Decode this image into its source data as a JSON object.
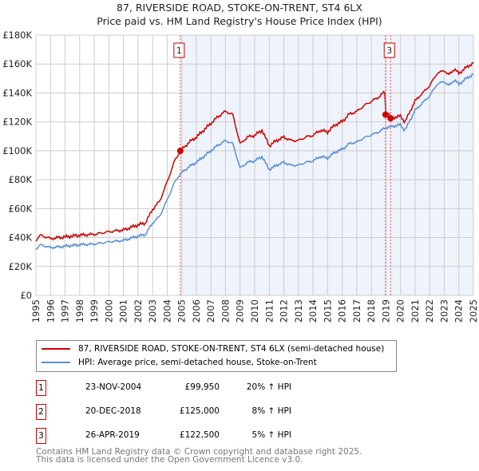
{
  "chart_data": {
    "type": "line",
    "title": "87, RIVERSIDE ROAD, STOKE-ON-TRENT, ST4 6LX",
    "subtitle": "Price paid vs. HM Land Registry's House Price Index (HPI)",
    "xlim": [
      1995,
      2025
    ],
    "ylim": [
      0,
      180000
    ],
    "yticks": [
      {
        "v": 0,
        "l": "£0"
      },
      {
        "v": 20000,
        "l": "£20K"
      },
      {
        "v": 40000,
        "l": "£40K"
      },
      {
        "v": 60000,
        "l": "£60K"
      },
      {
        "v": 80000,
        "l": "£80K"
      },
      {
        "v": 100000,
        "l": "£100K"
      },
      {
        "v": 120000,
        "l": "£120K"
      },
      {
        "v": 140000,
        "l": "£140K"
      },
      {
        "v": 160000,
        "l": "£160K"
      },
      {
        "v": 180000,
        "l": "£180K"
      }
    ],
    "xticks": [
      "1995",
      "1996",
      "1997",
      "1998",
      "1999",
      "2000",
      "2001",
      "2002",
      "2003",
      "2004",
      "2005",
      "2006",
      "2007",
      "2008",
      "2009",
      "2010",
      "2011",
      "2012",
      "2013",
      "2014",
      "2015",
      "2016",
      "2017",
      "2018",
      "2019",
      "2020",
      "2021",
      "2022",
      "2023",
      "2024",
      "2025"
    ],
    "hpi_series": {
      "name": "HPI: Average price, semi-detached house, Stoke-on-Trent",
      "color": "#5b8fd4",
      "x": [
        1995,
        1995.3,
        1996,
        1997,
        1998,
        1999,
        2000,
        2001,
        2002,
        2002.5,
        2003,
        2003.5,
        2004,
        2004.5,
        2004.9,
        2005.5,
        2006,
        2006.5,
        2007,
        2007.5,
        2008,
        2008.5,
        2009,
        2009.5,
        2010,
        2010.5,
        2011,
        2011.5,
        2012,
        2012.5,
        2013,
        2013.5,
        2014,
        2014.5,
        2015,
        2015.5,
        2016,
        2016.5,
        2017,
        2017.5,
        2018,
        2018.5,
        2018.97,
        2019.3,
        2019.5,
        2020,
        2020.3,
        2020.7,
        2021,
        2021.5,
        2022,
        2022.5,
        2023,
        2023.3,
        2023.7,
        2024,
        2024.5,
        2025
      ],
      "y": [
        32000,
        35000,
        33000,
        34000,
        35000,
        35500,
        37000,
        38000,
        41000,
        42000,
        50000,
        55000,
        66000,
        78000,
        84000,
        89000,
        92000,
        96000,
        100000,
        104000,
        107000,
        105000,
        88000,
        92000,
        93000,
        96000,
        87000,
        90000,
        92000,
        90000,
        90000,
        92000,
        93000,
        96000,
        95000,
        99000,
        101000,
        105000,
        106000,
        109000,
        111000,
        113000,
        116000,
        116500,
        117000,
        118000,
        114000,
        122000,
        128000,
        133000,
        138000,
        146000,
        148000,
        145000,
        149000,
        146000,
        150000,
        153000
      ]
    },
    "price_series": {
      "name": "87, RIVERSIDE ROAD, STOKE-ON-TRENT, ST4 6LX (semi-detached house)",
      "color": "#cc0000"
    },
    "sales": [
      {
        "n": "1",
        "x": 2004.9,
        "date": "23-NOV-2004",
        "price": 99950,
        "price_label": "£99,950",
        "hpi": "20% ↑ HPI"
      },
      {
        "n": "2",
        "x": 2018.97,
        "date": "20-DEC-2018",
        "price": 125000,
        "price_label": "£125,000",
        "hpi": "8% ↑ HPI"
      },
      {
        "n": "3",
        "x": 2019.32,
        "date": "26-APR-2019",
        "price": 122500,
        "price_label": "£122,500",
        "hpi": "5% ↑ HPI"
      }
    ],
    "legend_placement": "below"
  },
  "footer": {
    "line1": "Contains HM Land Registry data © Crown copyright and database right 2025.",
    "line2": "This data is licensed under the Open Government Licence v3.0."
  }
}
